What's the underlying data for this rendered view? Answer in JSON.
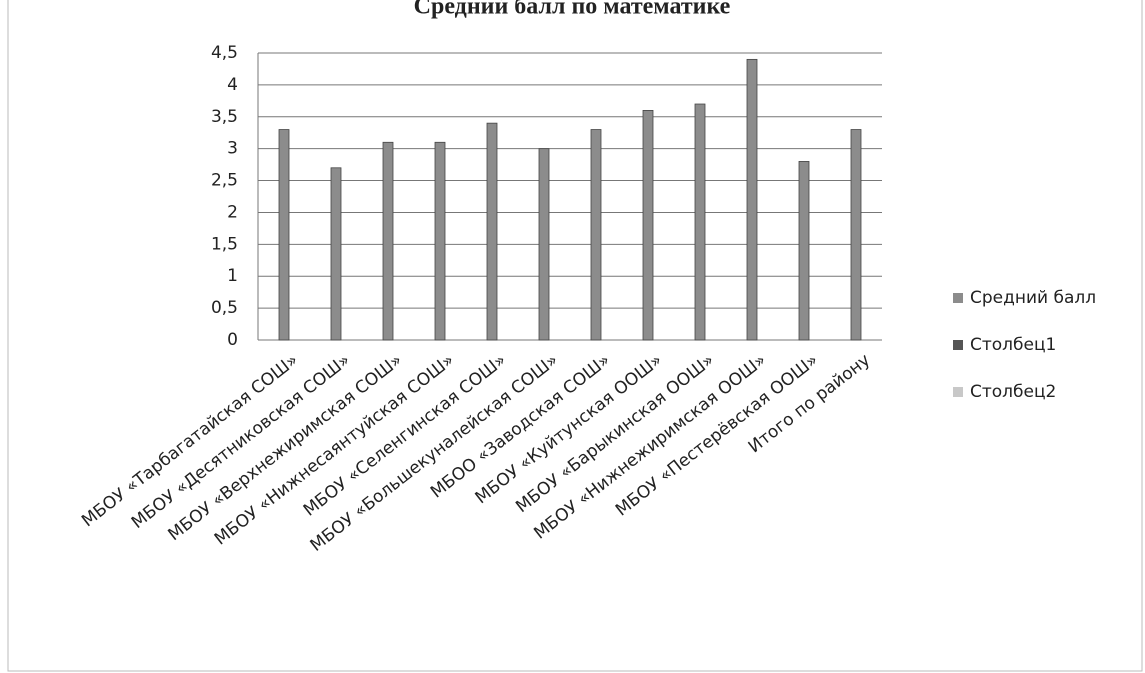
{
  "chart_data": {
    "type": "bar",
    "title": "Средний балл по математике",
    "categories": [
      "МБОУ «Тарбагатайская СОШ»",
      "МБОУ «Десятниковская СОШ»",
      "МБОУ «Верхнежиримская СОШ»",
      "МБОУ «Нижнесаянтуйская СОШ»",
      "МБОУ «Селенгинская СОШ»",
      "МБОУ «Большекуналейская СОШ»",
      "МБОО «Заводская СОШ»",
      "МБОУ «Куйтунская ООШ»",
      "МБОУ «Барыкинская ООШ»",
      "МБОУ «Нижнежиримская ООШ»",
      "МБОУ «Пестерёвская ООШ»",
      "Итого по району"
    ],
    "series": [
      {
        "name": "Средний балл",
        "color": "#8c8c8c",
        "values": [
          3.3,
          2.7,
          3.1,
          3.1,
          3.4,
          3.0,
          3.3,
          3.6,
          3.7,
          4.4,
          2.8,
          3.3
        ]
      },
      {
        "name": "Столбец1",
        "color": "#555555",
        "values": [
          null,
          null,
          null,
          null,
          null,
          null,
          null,
          null,
          null,
          null,
          null,
          null
        ]
      },
      {
        "name": "Столбец2",
        "color": "#c8c8c8",
        "values": [
          null,
          null,
          null,
          null,
          null,
          null,
          null,
          null,
          null,
          null,
          null,
          null
        ]
      }
    ],
    "ylim": [
      0,
      4.5
    ],
    "yticks": [
      0,
      {
        "value": 0.5,
        "label": "0,5"
      },
      1,
      {
        "value": 1.5,
        "label": "1,5"
      },
      2,
      {
        "value": 2.5,
        "label": "2,5"
      },
      3,
      {
        "value": 3.5,
        "label": "3,5"
      },
      4,
      {
        "value": 4.5,
        "label": "4,5"
      }
    ],
    "grid": true,
    "legend": "right"
  }
}
